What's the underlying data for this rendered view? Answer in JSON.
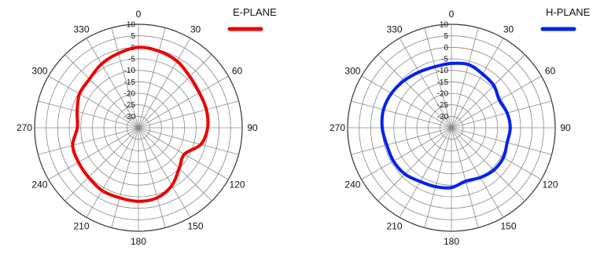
{
  "chart_data": [
    {
      "type": "polar",
      "legend": {
        "label": "E-PLANE",
        "position": "top-right"
      },
      "color": "#ee0000",
      "angular_ticks": [
        "0",
        "30",
        "60",
        "90",
        "120",
        "150",
        "180",
        "210",
        "240",
        "270",
        "300",
        "330"
      ],
      "radial_ticks": [
        "10",
        "5",
        "0",
        "-5",
        "-10",
        "-15",
        "-20",
        "-25",
        "-30"
      ],
      "radial_range": [
        -35,
        10
      ],
      "angles": [
        0,
        15,
        30,
        45,
        60,
        75,
        90,
        105,
        120,
        135,
        150,
        165,
        180,
        195,
        210,
        225,
        240,
        255,
        270,
        285,
        300,
        315,
        330,
        345
      ],
      "values": [
        0,
        -0.5,
        -1.5,
        -3.5,
        -4.5,
        -4.5,
        -5,
        -7,
        -12,
        -10,
        -6,
        -3.5,
        -3,
        -3.5,
        -3.5,
        -4.5,
        -5,
        -5.5,
        -8.5,
        -7.5,
        -5.5,
        -5,
        -3,
        -1.5
      ]
    },
    {
      "type": "polar",
      "legend": {
        "label": "H-PLANE",
        "position": "top-right"
      },
      "color": "#0022ee",
      "angular_ticks": [
        "0",
        "30",
        "60",
        "90",
        "120",
        "150",
        "180",
        "210",
        "240",
        "270",
        "300",
        "330"
      ],
      "radial_ticks": [
        "10",
        "5",
        "0",
        "-5",
        "-10",
        "-15",
        "-20",
        "-25",
        "-30"
      ],
      "radial_range": [
        -35,
        10
      ],
      "angles": [
        0,
        15,
        30,
        45,
        60,
        75,
        90,
        105,
        120,
        135,
        150,
        165,
        180,
        195,
        210,
        225,
        240,
        255,
        270,
        285,
        300,
        315,
        330,
        345
      ],
      "values": [
        -7,
        -6.5,
        -8,
        -9,
        -11,
        -10,
        -9.5,
        -10,
        -9,
        -9,
        -10,
        -11,
        -9,
        -8.5,
        -8,
        -6.5,
        -6,
        -6,
        -5,
        -4.5,
        -5,
        -6,
        -7,
        -7.5
      ]
    }
  ]
}
